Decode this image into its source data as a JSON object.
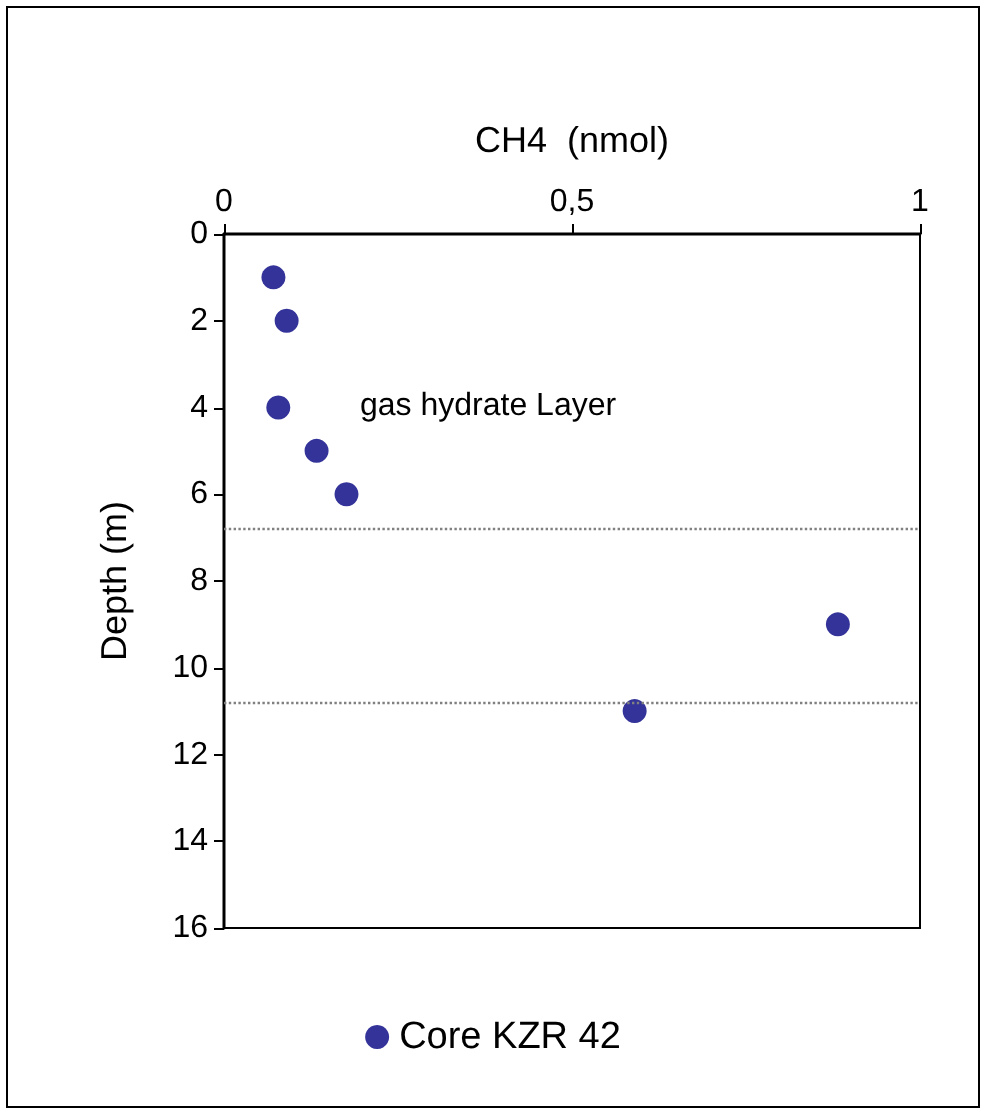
{
  "chart_data": {
    "type": "scatter",
    "xlabel": "CH4  (nmol)",
    "ylabel": "Depth (m)",
    "x": [
      0.071,
      0.09,
      0.078,
      0.133,
      0.176,
      0.882,
      0.59
    ],
    "series": [
      {
        "name": "Core KZR 42",
        "color": "#000080",
        "values": [
          1,
          2,
          4,
          5,
          6,
          9,
          11
        ]
      }
    ],
    "xlim": [
      0,
      1
    ],
    "xticks": [
      0,
      {
        "value": 0.5,
        "label": "0,5"
      },
      1
    ],
    "ylim": [
      16,
      0
    ],
    "yticks": [
      0,
      2,
      4,
      6,
      8,
      10,
      12,
      14,
      16
    ],
    "ref_lines": [
      {
        "axis": "y",
        "value": 6.8,
        "color": "#808080",
        "line_style": "dotted"
      },
      {
        "axis": "y",
        "value": 10.8,
        "color": "#808080",
        "line_style": "dotted"
      }
    ],
    "annotations": [
      "gas hydrate Layer"
    ],
    "grid": false,
    "legend": "bottom",
    "marker": "circle"
  }
}
